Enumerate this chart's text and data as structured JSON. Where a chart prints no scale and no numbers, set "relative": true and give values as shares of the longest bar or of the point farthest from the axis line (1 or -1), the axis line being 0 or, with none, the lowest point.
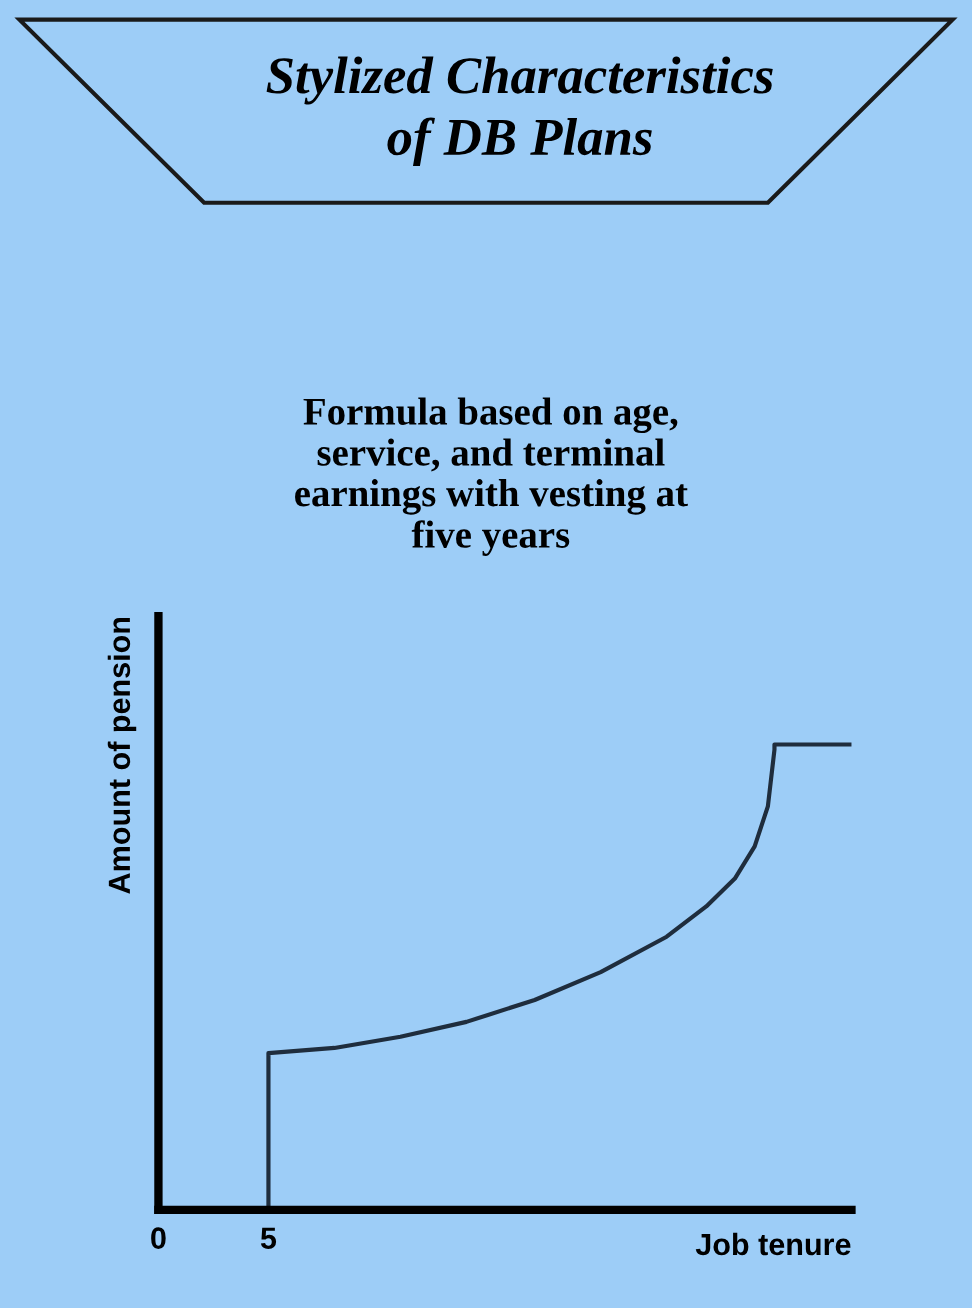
{
  "chart_data": {
    "type": "line",
    "title": "Stylized Characteristics\nof DB Plans",
    "subtitle": "Formula based on age,\nservice, and terminal\nearnings with vesting at\nfive years",
    "xlabel": "Job tenure",
    "ylabel": "Amount of pension",
    "relative": true,
    "xlim": [
      0,
      31.5
    ],
    "xticks": [
      0,
      5
    ],
    "series": [
      {
        "color": "#1f2d3d",
        "x": [
          5,
          5,
          8,
          11,
          14,
          17.1,
          20.1,
          23.1,
          24.9,
          26.2,
          27.1,
          27.7,
          28,
          28,
          31.5
        ],
        "values": [
          0,
          0.337,
          0.348,
          0.372,
          0.404,
          0.451,
          0.511,
          0.587,
          0.652,
          0.712,
          0.781,
          0.867,
          0.989,
          1,
          1
        ]
      }
    ],
    "grid": false,
    "legend": false
  }
}
